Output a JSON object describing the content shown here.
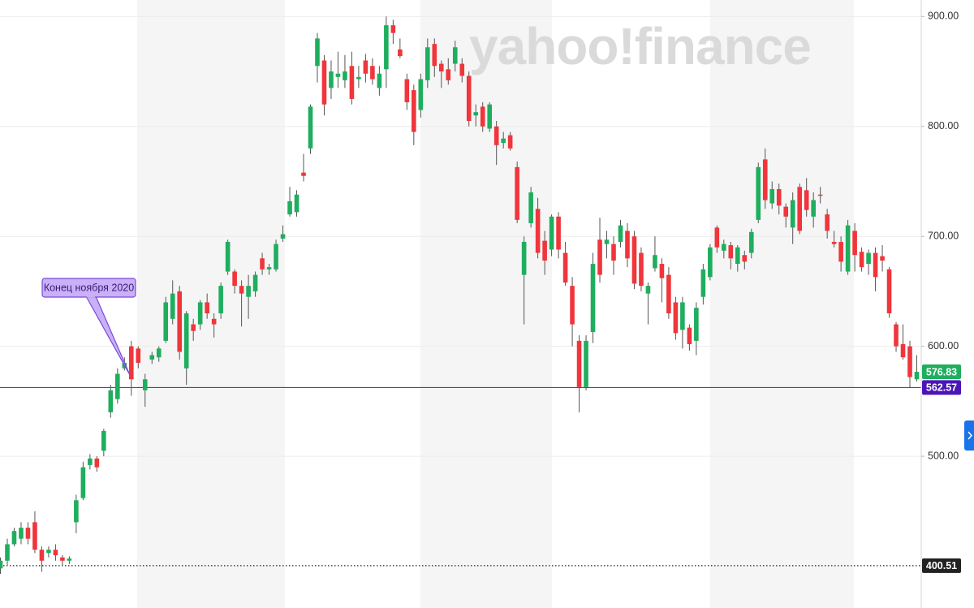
{
  "chart_data": {
    "type": "candlestick",
    "watermark": "yahoo!finance",
    "annotation": "Конец ноября 2020",
    "up_color": "#1eae5e",
    "down_color": "#f0353b",
    "ylim": [
      362,
      915
    ],
    "yticks": [
      {
        "value": 500,
        "label": "500.00"
      },
      {
        "value": 600,
        "label": "600.00"
      },
      {
        "value": 700,
        "label": "700.00"
      },
      {
        "value": 800,
        "label": "800.00"
      },
      {
        "value": 900,
        "label": "900.00"
      }
    ],
    "grid": true,
    "price_lines": [
      {
        "value": 576.83,
        "color": "#1eae5e",
        "line": false
      },
      {
        "value": 562.57,
        "color": "#4b16b8",
        "line": "solid"
      },
      {
        "value": 400.51,
        "color": "#222222",
        "line": "dotted"
      }
    ],
    "candles": [
      {
        "open": 398,
        "high": 408,
        "low": 393,
        "close": 405
      },
      {
        "open": 405,
        "high": 425,
        "low": 400,
        "close": 420
      },
      {
        "open": 420,
        "high": 435,
        "low": 418,
        "close": 432
      },
      {
        "open": 425,
        "high": 440,
        "low": 420,
        "close": 435
      },
      {
        "open": 435,
        "high": 440,
        "low": 420,
        "close": 425
      },
      {
        "open": 440,
        "high": 450,
        "low": 412,
        "close": 415
      },
      {
        "open": 415,
        "high": 418,
        "low": 395,
        "close": 405
      },
      {
        "open": 412,
        "high": 418,
        "low": 408,
        "close": 415
      },
      {
        "open": 415,
        "high": 420,
        "low": 405,
        "close": 410
      },
      {
        "open": 408,
        "high": 410,
        "low": 400,
        "close": 405
      },
      {
        "open": 405,
        "high": 409,
        "low": 402,
        "close": 407
      },
      {
        "open": 440,
        "high": 465,
        "low": 430,
        "close": 460
      },
      {
        "open": 462,
        "high": 495,
        "low": 460,
        "close": 490
      },
      {
        "open": 492,
        "high": 502,
        "low": 488,
        "close": 498
      },
      {
        "open": 498,
        "high": 500,
        "low": 486,
        "close": 490
      },
      {
        "open": 505,
        "high": 525,
        "low": 500,
        "close": 523
      },
      {
        "open": 540,
        "high": 565,
        "low": 535,
        "close": 560
      },
      {
        "open": 552,
        "high": 580,
        "low": 548,
        "close": 575
      },
      {
        "open": 580,
        "high": 590,
        "low": 578,
        "close": 585
      },
      {
        "open": 600,
        "high": 605,
        "low": 555,
        "close": 570
      },
      {
        "open": 598,
        "high": 600,
        "low": 580,
        "close": 585
      },
      {
        "open": 560,
        "high": 575,
        "low": 545,
        "close": 570
      },
      {
        "open": 588,
        "high": 595,
        "low": 584,
        "close": 592
      },
      {
        "open": 590,
        "high": 600,
        "low": 586,
        "close": 598
      },
      {
        "open": 605,
        "high": 645,
        "low": 603,
        "close": 640
      },
      {
        "open": 625,
        "high": 660,
        "low": 620,
        "close": 648
      },
      {
        "open": 650,
        "high": 655,
        "low": 588,
        "close": 595
      },
      {
        "open": 580,
        "high": 632,
        "low": 565,
        "close": 630
      },
      {
        "open": 620,
        "high": 625,
        "low": 605,
        "close": 614
      },
      {
        "open": 620,
        "high": 642,
        "low": 615,
        "close": 640
      },
      {
        "open": 640,
        "high": 648,
        "low": 625,
        "close": 630
      },
      {
        "open": 625,
        "high": 630,
        "low": 608,
        "close": 620
      },
      {
        "open": 630,
        "high": 658,
        "low": 625,
        "close": 655
      },
      {
        "open": 668,
        "high": 697,
        "low": 665,
        "close": 695
      },
      {
        "open": 668,
        "high": 670,
        "low": 648,
        "close": 655
      },
      {
        "open": 655,
        "high": 660,
        "low": 618,
        "close": 648
      },
      {
        "open": 645,
        "high": 665,
        "low": 625,
        "close": 655
      },
      {
        "open": 650,
        "high": 668,
        "low": 645,
        "close": 665
      },
      {
        "open": 680,
        "high": 685,
        "low": 665,
        "close": 670
      },
      {
        "open": 670,
        "high": 675,
        "low": 665,
        "close": 672
      },
      {
        "open": 670,
        "high": 697,
        "low": 668,
        "close": 693
      },
      {
        "open": 698,
        "high": 710,
        "low": 695,
        "close": 702
      },
      {
        "open": 720,
        "high": 745,
        "low": 718,
        "close": 732
      },
      {
        "open": 722,
        "high": 742,
        "low": 718,
        "close": 738
      },
      {
        "open": 758,
        "high": 775,
        "low": 750,
        "close": 755
      },
      {
        "open": 780,
        "high": 820,
        "low": 775,
        "close": 818
      },
      {
        "open": 855,
        "high": 885,
        "low": 840,
        "close": 880
      },
      {
        "open": 860,
        "high": 865,
        "low": 810,
        "close": 820
      },
      {
        "open": 835,
        "high": 860,
        "low": 825,
        "close": 850
      },
      {
        "open": 845,
        "high": 868,
        "low": 835,
        "close": 848
      },
      {
        "open": 842,
        "high": 865,
        "low": 835,
        "close": 850
      },
      {
        "open": 855,
        "high": 868,
        "low": 820,
        "close": 825
      },
      {
        "open": 843,
        "high": 855,
        "low": 835,
        "close": 845
      },
      {
        "open": 860,
        "high": 866,
        "low": 840,
        "close": 848
      },
      {
        "open": 855,
        "high": 862,
        "low": 838,
        "close": 843
      },
      {
        "open": 835,
        "high": 855,
        "low": 828,
        "close": 848
      },
      {
        "open": 852,
        "high": 900,
        "low": 835,
        "close": 892
      },
      {
        "open": 892,
        "high": 897,
        "low": 875,
        "close": 885
      },
      {
        "open": 870,
        "high": 880,
        "low": 862,
        "close": 864
      },
      {
        "open": 843,
        "high": 848,
        "low": 815,
        "close": 822
      },
      {
        "open": 833,
        "high": 838,
        "low": 783,
        "close": 795
      },
      {
        "open": 815,
        "high": 848,
        "low": 808,
        "close": 843
      },
      {
        "open": 842,
        "high": 880,
        "low": 835,
        "close": 872
      },
      {
        "open": 875,
        "high": 880,
        "low": 845,
        "close": 855
      },
      {
        "open": 857,
        "high": 860,
        "low": 835,
        "close": 850
      },
      {
        "open": 852,
        "high": 862,
        "low": 838,
        "close": 842
      },
      {
        "open": 857,
        "high": 878,
        "low": 850,
        "close": 872
      },
      {
        "open": 857,
        "high": 862,
        "low": 840,
        "close": 846
      },
      {
        "open": 846,
        "high": 850,
        "low": 800,
        "close": 805
      },
      {
        "open": 810,
        "high": 820,
        "low": 800,
        "close": 813
      },
      {
        "open": 818,
        "high": 822,
        "low": 795,
        "close": 800
      },
      {
        "open": 798,
        "high": 822,
        "low": 795,
        "close": 820
      },
      {
        "open": 800,
        "high": 805,
        "low": 765,
        "close": 783
      },
      {
        "open": 785,
        "high": 795,
        "low": 780,
        "close": 789
      },
      {
        "open": 792,
        "high": 795,
        "low": 778,
        "close": 780
      },
      {
        "open": 763,
        "high": 768,
        "low": 712,
        "close": 715
      },
      {
        "open": 665,
        "high": 700,
        "low": 620,
        "close": 695
      },
      {
        "open": 712,
        "high": 745,
        "low": 708,
        "close": 740
      },
      {
        "open": 725,
        "high": 735,
        "low": 680,
        "close": 685
      },
      {
        "open": 696,
        "high": 705,
        "low": 665,
        "close": 678
      },
      {
        "open": 688,
        "high": 720,
        "low": 682,
        "close": 718
      },
      {
        "open": 718,
        "high": 722,
        "low": 680,
        "close": 688
      },
      {
        "open": 685,
        "high": 695,
        "low": 655,
        "close": 658
      },
      {
        "open": 655,
        "high": 663,
        "low": 600,
        "close": 620
      },
      {
        "open": 605,
        "high": 610,
        "low": 540,
        "close": 563
      },
      {
        "open": 563,
        "high": 610,
        "low": 560,
        "close": 605
      },
      {
        "open": 613,
        "high": 685,
        "low": 603,
        "close": 675
      },
      {
        "open": 697,
        "high": 717,
        "low": 658,
        "close": 665
      },
      {
        "open": 693,
        "high": 705,
        "low": 680,
        "close": 697
      },
      {
        "open": 693,
        "high": 700,
        "low": 665,
        "close": 678
      },
      {
        "open": 695,
        "high": 715,
        "low": 690,
        "close": 710
      },
      {
        "open": 705,
        "high": 712,
        "low": 672,
        "close": 680
      },
      {
        "open": 700,
        "high": 705,
        "low": 652,
        "close": 657
      },
      {
        "open": 685,
        "high": 690,
        "low": 650,
        "close": 655
      },
      {
        "open": 648,
        "high": 658,
        "low": 620,
        "close": 655
      },
      {
        "open": 671,
        "high": 700,
        "low": 668,
        "close": 683
      },
      {
        "open": 675,
        "high": 680,
        "low": 640,
        "close": 662
      },
      {
        "open": 665,
        "high": 672,
        "low": 625,
        "close": 630
      },
      {
        "open": 640,
        "high": 645,
        "low": 606,
        "close": 612
      },
      {
        "open": 615,
        "high": 645,
        "low": 598,
        "close": 640
      },
      {
        "open": 617,
        "high": 620,
        "low": 596,
        "close": 602
      },
      {
        "open": 605,
        "high": 640,
        "low": 592,
        "close": 635
      },
      {
        "open": 645,
        "high": 675,
        "low": 638,
        "close": 670
      },
      {
        "open": 663,
        "high": 693,
        "low": 660,
        "close": 690
      },
      {
        "open": 708,
        "high": 710,
        "low": 685,
        "close": 690
      },
      {
        "open": 687,
        "high": 697,
        "low": 680,
        "close": 693
      },
      {
        "open": 692,
        "high": 695,
        "low": 670,
        "close": 680
      },
      {
        "open": 675,
        "high": 692,
        "low": 668,
        "close": 690
      },
      {
        "open": 683,
        "high": 687,
        "low": 670,
        "close": 677
      },
      {
        "open": 685,
        "high": 707,
        "low": 680,
        "close": 704
      },
      {
        "open": 715,
        "high": 767,
        "low": 712,
        "close": 763
      },
      {
        "open": 770,
        "high": 780,
        "low": 725,
        "close": 733
      },
      {
        "open": 730,
        "high": 750,
        "low": 725,
        "close": 743
      },
      {
        "open": 743,
        "high": 748,
        "low": 720,
        "close": 728
      },
      {
        "open": 727,
        "high": 730,
        "low": 708,
        "close": 718
      },
      {
        "open": 708,
        "high": 740,
        "low": 693,
        "close": 733
      },
      {
        "open": 745,
        "high": 748,
        "low": 702,
        "close": 705
      },
      {
        "open": 742,
        "high": 753,
        "low": 718,
        "close": 724
      },
      {
        "open": 718,
        "high": 740,
        "low": 708,
        "close": 733
      },
      {
        "open": 738,
        "high": 745,
        "low": 730,
        "close": 737
      },
      {
        "open": 720,
        "high": 725,
        "low": 698,
        "close": 705
      },
      {
        "open": 695,
        "high": 705,
        "low": 690,
        "close": 693
      },
      {
        "open": 695,
        "high": 700,
        "low": 668,
        "close": 677
      },
      {
        "open": 668,
        "high": 715,
        "low": 665,
        "close": 710
      },
      {
        "open": 705,
        "high": 712,
        "low": 668,
        "close": 683
      },
      {
        "open": 686,
        "high": 690,
        "low": 668,
        "close": 672
      },
      {
        "open": 675,
        "high": 688,
        "low": 665,
        "close": 685
      },
      {
        "open": 685,
        "high": 690,
        "low": 650,
        "close": 663
      },
      {
        "open": 682,
        "high": 692,
        "low": 668,
        "close": 678
      },
      {
        "open": 670,
        "high": 672,
        "low": 626,
        "close": 630
      },
      {
        "open": 620,
        "high": 622,
        "low": 595,
        "close": 600
      },
      {
        "open": 602,
        "high": 620,
        "low": 588,
        "close": 590
      },
      {
        "open": 600,
        "high": 605,
        "low": 562,
        "close": 572
      },
      {
        "open": 570,
        "high": 592,
        "low": 568,
        "close": 576.83
      }
    ]
  }
}
